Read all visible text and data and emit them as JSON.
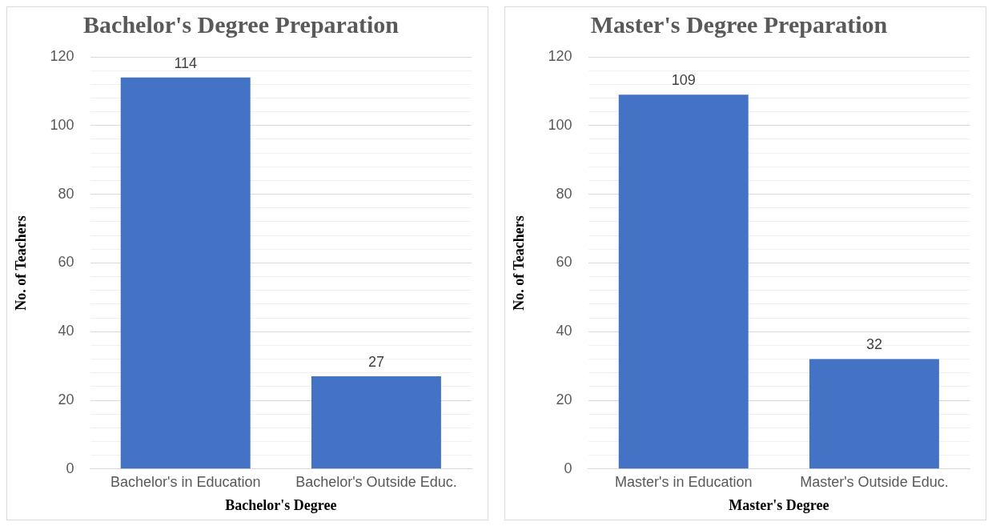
{
  "chart_data": [
    {
      "type": "bar",
      "title": "Bachelor's Degree Preparation",
      "xlabel": "Bachelor's Degree",
      "ylabel": "No. of Teachers",
      "categories": [
        "Bachelor's in Education",
        "Bachelor's Outside Educ."
      ],
      "values": [
        114,
        27
      ],
      "color": "#4472c4",
      "data_labels": true,
      "ylim": [
        0,
        120
      ],
      "yticks": [
        0,
        {
          "value": 4,
          "label": null
        },
        {
          "value": 8,
          "label": null
        },
        {
          "value": 12,
          "label": null
        },
        {
          "value": 16,
          "label": null
        },
        20,
        {
          "value": 24,
          "label": null
        },
        {
          "value": 28,
          "label": null
        },
        {
          "value": 32,
          "label": null
        },
        {
          "value": 36,
          "label": null
        },
        40,
        {
          "value": 44,
          "label": null
        },
        {
          "value": 48,
          "label": null
        },
        {
          "value": 52,
          "label": null
        },
        {
          "value": 56,
          "label": null
        },
        60,
        {
          "value": 64,
          "label": null
        },
        {
          "value": 68,
          "label": null
        },
        {
          "value": 72,
          "label": null
        },
        {
          "value": 76,
          "label": null
        },
        80,
        {
          "value": 84,
          "label": null
        },
        {
          "value": 88,
          "label": null
        },
        {
          "value": 92,
          "label": null
        },
        {
          "value": 96,
          "label": null
        },
        100,
        {
          "value": 104,
          "label": null
        },
        {
          "value": 108,
          "label": null
        },
        {
          "value": 112,
          "label": null
        },
        {
          "value": 116,
          "label": null
        },
        120
      ],
      "grid": "y",
      "legend": false
    },
    {
      "type": "bar",
      "title": "Master's Degree Preparation",
      "xlabel": "Master's Degree",
      "ylabel": "No. of Teachers",
      "categories": [
        "Master's in Education",
        "Master's Outside Educ."
      ],
      "values": [
        109,
        32
      ],
      "color": "#4472c4",
      "data_labels": true,
      "ylim": [
        0,
        120
      ],
      "yticks": [
        0,
        {
          "value": 4,
          "label": null
        },
        {
          "value": 8,
          "label": null
        },
        {
          "value": 12,
          "label": null
        },
        {
          "value": 16,
          "label": null
        },
        20,
        {
          "value": 24,
          "label": null
        },
        {
          "value": 28,
          "label": null
        },
        {
          "value": 32,
          "label": null
        },
        {
          "value": 36,
          "label": null
        },
        40,
        {
          "value": 44,
          "label": null
        },
        {
          "value": 48,
          "label": null
        },
        {
          "value": 52,
          "label": null
        },
        {
          "value": 56,
          "label": null
        },
        60,
        {
          "value": 64,
          "label": null
        },
        {
          "value": 68,
          "label": null
        },
        {
          "value": 72,
          "label": null
        },
        {
          "value": 76,
          "label": null
        },
        80,
        {
          "value": 84,
          "label": null
        },
        {
          "value": 88,
          "label": null
        },
        {
          "value": 92,
          "label": null
        },
        {
          "value": 96,
          "label": null
        },
        100,
        {
          "value": 104,
          "label": null
        },
        {
          "value": 108,
          "label": null
        },
        {
          "value": 112,
          "label": null
        },
        {
          "value": 116,
          "label": null
        },
        120
      ],
      "grid": "y",
      "legend": false
    }
  ]
}
